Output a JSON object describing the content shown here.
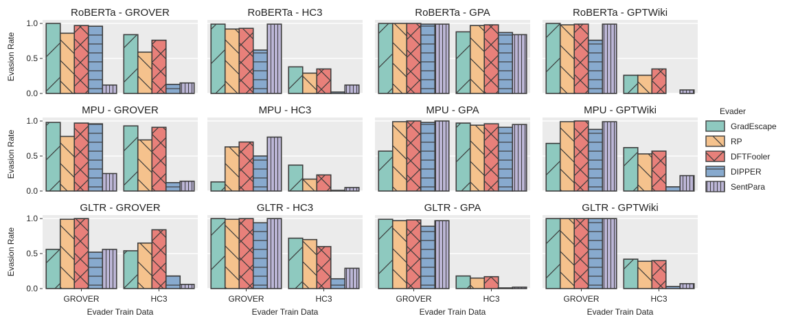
{
  "chart_data": {
    "type": "bar",
    "grid": {
      "rows": [
        "RoBERTa",
        "MPU",
        "GLTR"
      ],
      "cols": [
        "GROVER",
        "HC3",
        "GPA",
        "GPTWiki"
      ],
      "title_separator": " - "
    },
    "categories": [
      "GROVER",
      "HC3"
    ],
    "xlabel": "Evader Train Data",
    "ylabel": "Evasion Rate",
    "ylim": [
      0,
      1.05
    ],
    "yticks": [
      0.0,
      0.5,
      1.0
    ],
    "ytick_labels": [
      "0.0",
      "0.5",
      "1.0"
    ],
    "legend": {
      "title": "Evader",
      "position": "right",
      "entries": [
        "GradEscape",
        "RP",
        "DFTFooler",
        "DIPPER",
        "SentPara"
      ]
    },
    "series_colors": [
      "#8ec9bf",
      "#f5c28d",
      "#e8807a",
      "#88aace",
      "#bcb6d6"
    ],
    "series_hatch": [
      "slash",
      "backslash",
      "cross",
      "horizontal",
      "vertical"
    ],
    "panels": [
      {
        "row": "RoBERTa",
        "col": "GROVER",
        "values": [
          [
            1.0,
            0.86,
            0.97,
            0.96,
            0.12
          ],
          [
            0.84,
            0.59,
            0.76,
            0.13,
            0.15
          ]
        ]
      },
      {
        "row": "RoBERTa",
        "col": "HC3",
        "values": [
          [
            0.99,
            0.92,
            0.93,
            0.62,
            0.99
          ],
          [
            0.38,
            0.29,
            0.35,
            0.02,
            0.12
          ]
        ]
      },
      {
        "row": "RoBERTa",
        "col": "GPA",
        "values": [
          [
            1.0,
            1.0,
            1.0,
            0.99,
            0.99
          ],
          [
            0.88,
            0.97,
            0.98,
            0.87,
            0.84
          ]
        ]
      },
      {
        "row": "RoBERTa",
        "col": "GPTWiki",
        "values": [
          [
            1.0,
            0.98,
            0.99,
            0.76,
            0.99
          ],
          [
            0.26,
            0.26,
            0.35,
            0.0,
            0.05
          ]
        ]
      },
      {
        "row": "MPU",
        "col": "GROVER",
        "values": [
          [
            0.98,
            0.78,
            0.97,
            0.96,
            0.25
          ],
          [
            0.93,
            0.73,
            0.91,
            0.12,
            0.14
          ]
        ]
      },
      {
        "row": "MPU",
        "col": "HC3",
        "values": [
          [
            0.13,
            0.63,
            0.7,
            0.5,
            0.77
          ],
          [
            0.37,
            0.17,
            0.23,
            0.01,
            0.05
          ]
        ]
      },
      {
        "row": "MPU",
        "col": "GPA",
        "values": [
          [
            0.57,
            0.99,
            1.0,
            0.98,
            1.0
          ],
          [
            0.97,
            0.94,
            0.96,
            0.91,
            0.95
          ]
        ]
      },
      {
        "row": "MPU",
        "col": "GPTWiki",
        "values": [
          [
            0.68,
            0.99,
            1.0,
            0.88,
            0.99
          ],
          [
            0.62,
            0.53,
            0.57,
            0.06,
            0.22
          ]
        ]
      },
      {
        "row": "GLTR",
        "col": "GROVER",
        "values": [
          [
            0.56,
            0.99,
            1.0,
            0.52,
            0.56
          ],
          [
            0.54,
            0.65,
            0.84,
            0.18,
            0.06
          ]
        ]
      },
      {
        "row": "GLTR",
        "col": "HC3",
        "values": [
          [
            1.0,
            0.99,
            1.0,
            0.94,
            1.0
          ],
          [
            0.72,
            0.7,
            0.6,
            0.14,
            0.29
          ]
        ]
      },
      {
        "row": "GLTR",
        "col": "GPA",
        "values": [
          [
            0.99,
            0.97,
            0.98,
            0.89,
            0.97
          ],
          [
            0.18,
            0.15,
            0.17,
            0.01,
            0.02
          ]
        ]
      },
      {
        "row": "GLTR",
        "col": "GPTWiki",
        "values": [
          [
            1.0,
            1.0,
            1.0,
            1.0,
            1.0
          ],
          [
            0.42,
            0.39,
            0.4,
            0.03,
            0.07
          ]
        ]
      }
    ]
  }
}
